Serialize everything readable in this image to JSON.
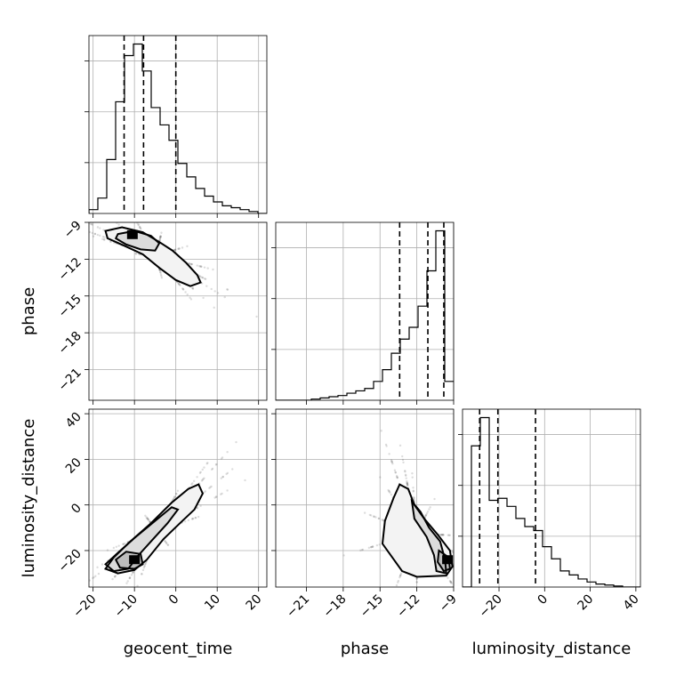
{
  "chart_data": {
    "type": "corner",
    "parameters": [
      "geocent_time",
      "phase",
      "luminosity_distance"
    ],
    "axis_labels": [
      "geocent_time",
      "phase",
      "luminosity_distance"
    ],
    "ranges": {
      "geocent_time": [
        -21,
        22
      ],
      "phase": [
        -23.5,
        -9
      ],
      "luminosity_distance": [
        -36,
        42
      ]
    },
    "ticks": {
      "geocent_time": [
        -20,
        -10,
        0,
        10,
        20
      ],
      "phase": [
        -21,
        -18,
        -15,
        -12,
        -9
      ],
      "luminosity_distance": [
        -20,
        0,
        20,
        40
      ]
    },
    "tick_labels": {
      "geocent_time": [
        "−20",
        "−10",
        "0",
        "10",
        "20"
      ],
      "phase": [
        "−21",
        "−18",
        "−15",
        "−12",
        "−9"
      ],
      "luminosity_distance": [
        "−20",
        "0",
        "20",
        "40"
      ]
    },
    "grid": true,
    "histograms": {
      "geocent_time": {
        "edges": [
          -21,
          -18.85,
          -16.7,
          -14.55,
          -12.4,
          -10.25,
          -8.1,
          -5.95,
          -3.8,
          -1.65,
          0.5,
          2.65,
          4.8,
          6.95,
          9.1,
          11.25,
          13.4,
          15.55,
          17.7,
          19.85,
          22
        ],
        "counts": [
          2,
          8,
          28,
          58,
          82,
          88,
          74,
          55,
          46,
          38,
          26,
          19,
          13,
          9,
          6,
          4,
          3,
          2,
          1,
          0
        ],
        "quantile_lines": [
          -12.5,
          -7.8,
          0
        ]
      },
      "phase": {
        "edges": [
          -23.5,
          -22.775,
          -22.05,
          -21.325,
          -20.6,
          -19.875,
          -19.15,
          -18.425,
          -17.7,
          -16.975,
          -16.25,
          -15.525,
          -14.8,
          -14.075,
          -13.35,
          -12.625,
          -11.9,
          -11.175,
          -10.45,
          -9.725,
          -9
        ],
        "counts": [
          0,
          0,
          0,
          0,
          0.5,
          1,
          1.5,
          2,
          3,
          4,
          5,
          8,
          13,
          20,
          26,
          31,
          40,
          55,
          72,
          8
        ],
        "quantile_lines": [
          -13.4,
          -11.1,
          -9.8
        ]
      },
      "luminosity_distance": {
        "edges": [
          -36,
          -32.1,
          -28.2,
          -24.3,
          -20.4,
          -16.5,
          -12.6,
          -8.7,
          -4.8,
          -0.9,
          3,
          6.9,
          10.8,
          14.7,
          18.6,
          22.5,
          26.4,
          30.3,
          34.2,
          38.1,
          42
        ],
        "counts": [
          0,
          70,
          84,
          43,
          44,
          40,
          34,
          30,
          28,
          20,
          14,
          8,
          6,
          4,
          2.5,
          1.5,
          1,
          0.5,
          0,
          0
        ],
        "quantile_lines": [
          -28.5,
          -20.5,
          -4
        ]
      }
    },
    "pairs": [
      {
        "x": "geocent_time",
        "y": "phase",
        "peak": [
          -10.5,
          -10
        ],
        "contours": [
          [
            [
              -17,
              -9.7
            ],
            [
              -13,
              -9.4
            ],
            [
              -8,
              -9.8
            ],
            [
              -4,
              -10.6
            ],
            [
              -0.8,
              -11.3
            ],
            [
              2.5,
              -12.3
            ],
            [
              5.2,
              -13.3
            ],
            [
              6,
              -13.9
            ],
            [
              3.5,
              -14.2
            ],
            [
              0,
              -13.7
            ],
            [
              -4,
              -12.7
            ],
            [
              -8,
              -11.6
            ],
            [
              -12.5,
              -10.9
            ],
            [
              -16.5,
              -10.3
            ]
          ],
          [
            [
              -14,
              -9.95
            ],
            [
              -10,
              -9.7
            ],
            [
              -6,
              -10.1
            ],
            [
              -4,
              -10.7
            ],
            [
              -5,
              -11.3
            ],
            [
              -8.5,
              -11.2
            ],
            [
              -12,
              -10.8
            ],
            [
              -14.5,
              -10.3
            ]
          ]
        ]
      },
      {
        "x": "geocent_time",
        "y": "luminosity_distance",
        "peak": [
          -10,
          -24
        ],
        "contours": [
          [
            [
              -17,
              -28
            ],
            [
              -15,
              -23
            ],
            [
              -11,
              -16
            ],
            [
              -6,
              -8
            ],
            [
              -1,
              1
            ],
            [
              3,
              7
            ],
            [
              5.5,
              9
            ],
            [
              6.5,
              5
            ],
            [
              4.5,
              -2
            ],
            [
              1,
              -8
            ],
            [
              -3,
              -15
            ],
            [
              -7,
              -24
            ],
            [
              -10,
              -28.5
            ],
            [
              -14,
              -30
            ]
          ],
          [
            [
              -17,
              -26
            ],
            [
              -14,
              -21
            ],
            [
              -10,
              -14.5
            ],
            [
              -5,
              -7
            ],
            [
              -1,
              -1
            ],
            [
              0.5,
              -2
            ],
            [
              -2,
              -8
            ],
            [
              -6,
              -16
            ],
            [
              -9,
              -22
            ],
            [
              -11.5,
              -28
            ],
            [
              -15,
              -29
            ]
          ],
          [
            [
              -14.5,
              -24
            ],
            [
              -12,
              -20.5
            ],
            [
              -8.5,
              -21.5
            ],
            [
              -8,
              -26
            ],
            [
              -10,
              -28
            ],
            [
              -13.5,
              -27.5
            ]
          ]
        ]
      },
      {
        "x": "phase",
        "y": "luminosity_distance",
        "peak": [
          -9.5,
          -24
        ],
        "contours": [
          [
            [
              -14.8,
              -17
            ],
            [
              -14.6,
              -7
            ],
            [
              -13.9,
              3
            ],
            [
              -13.4,
              9
            ],
            [
              -12.7,
              7
            ],
            [
              -12.2,
              0
            ],
            [
              -11.4,
              -6
            ],
            [
              -10.3,
              -13
            ],
            [
              -9.3,
              -20
            ],
            [
              -9.1,
              -27
            ],
            [
              -9.6,
              -31
            ],
            [
              -12,
              -31.5
            ],
            [
              -13.2,
              -29
            ]
          ],
          [
            [
              -12.4,
              1.5
            ],
            [
              -11.7,
              -3
            ],
            [
              -11,
              -10
            ],
            [
              -10.1,
              -16
            ],
            [
              -9.7,
              -24
            ],
            [
              -9.6,
              -30
            ],
            [
              -10.4,
              -29
            ],
            [
              -10.6,
              -22
            ],
            [
              -11.2,
              -14
            ],
            [
              -12.2,
              -6
            ]
          ],
          [
            [
              -10.2,
              -20
            ],
            [
              -9.4,
              -23
            ],
            [
              -9.3,
              -28
            ],
            [
              -9.8,
              -29
            ],
            [
              -10.3,
              -25
            ]
          ]
        ]
      }
    ]
  }
}
